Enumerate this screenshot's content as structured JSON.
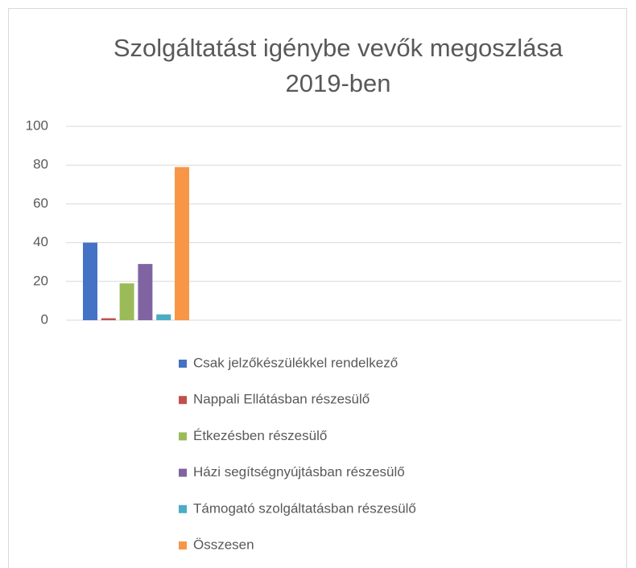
{
  "chart_data": {
    "type": "bar",
    "title": "Szolgáltatást igénybe vevők megoszlása 2019-ben",
    "categories": [
      null
    ],
    "series": [
      {
        "name": "Csak jelzőkészülékkel rendelkező",
        "color": "#4472c4",
        "values": [
          40
        ]
      },
      {
        "name": "Nappali Ellátásban részesülő",
        "color": "#c0504d",
        "values": [
          1
        ]
      },
      {
        "name": "Étkezésben részesülő",
        "color": "#9bbb59",
        "values": [
          19
        ]
      },
      {
        "name": "Házi segítségnyújtásban részesülő",
        "color": "#8064a2",
        "values": [
          29
        ]
      },
      {
        "name": "Támogató szolgáltatásban részesülő",
        "color": "#4bacc6",
        "values": [
          3
        ]
      },
      {
        "name": "Összesen",
        "color": "#f79646",
        "values": [
          79
        ]
      }
    ],
    "ylim": [
      0,
      100
    ],
    "yticks": [
      0,
      20,
      40,
      60,
      80,
      100
    ],
    "grid": true,
    "legend": "bottom"
  }
}
